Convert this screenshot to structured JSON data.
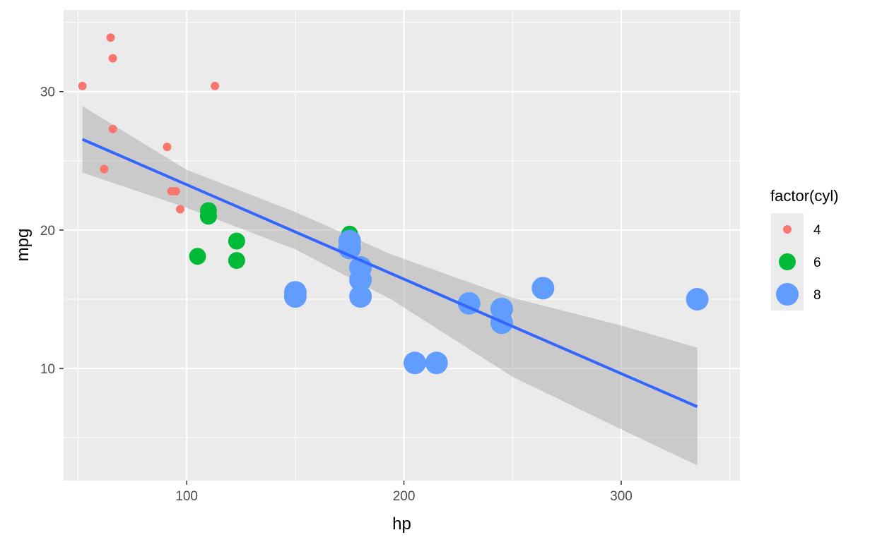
{
  "chart_data": {
    "type": "scatter",
    "title": "",
    "xlabel": "hp",
    "ylabel": "mpg",
    "xlim": [
      43.35,
      354.65
    ],
    "ylim": [
      1.9,
      35.9
    ],
    "x_ticks": [
      100,
      200,
      300
    ],
    "y_ticks": [
      10,
      20,
      30
    ],
    "grid": true,
    "legend": {
      "title": "factor(cyl)",
      "position": "right",
      "entries": [
        {
          "label": "4",
          "color": "#F8766D",
          "size": "small"
        },
        {
          "label": "6",
          "color": "#00BA38",
          "size": "medium"
        },
        {
          "label": "8",
          "color": "#619CFF",
          "size": "large"
        }
      ]
    },
    "series": [
      {
        "name": "4",
        "color": "#F8766D",
        "points": [
          [
            52,
            30.4
          ],
          [
            65,
            33.9
          ],
          [
            66,
            32.4
          ],
          [
            113,
            30.4
          ],
          [
            66,
            27.3
          ],
          [
            91,
            26.0
          ],
          [
            62,
            24.4
          ],
          [
            93,
            22.8
          ],
          [
            95,
            22.8
          ],
          [
            97,
            21.5
          ],
          [
            109,
            21.4
          ]
        ]
      },
      {
        "name": "6",
        "color": "#00BA38",
        "points": [
          [
            110,
            21.0
          ],
          [
            110,
            21.0
          ],
          [
            110,
            21.4
          ],
          [
            105,
            18.1
          ],
          [
            123,
            19.2
          ],
          [
            123,
            17.8
          ],
          [
            175,
            19.7
          ]
        ]
      },
      {
        "name": "8",
        "color": "#619CFF",
        "points": [
          [
            175,
            18.7
          ],
          [
            245,
            14.3
          ],
          [
            180,
            16.4
          ],
          [
            180,
            17.3
          ],
          [
            180,
            15.2
          ],
          [
            205,
            10.4
          ],
          [
            215,
            10.4
          ],
          [
            230,
            14.7
          ],
          [
            150,
            15.5
          ],
          [
            150,
            15.2
          ],
          [
            245,
            13.3
          ],
          [
            175,
            19.2
          ],
          [
            264,
            15.8
          ],
          [
            335,
            15.0
          ]
        ]
      }
    ],
    "fit": {
      "method": "lm",
      "color": "#3366FF",
      "line": [
        [
          52,
          26.55
        ],
        [
          335,
          7.24
        ]
      ],
      "band": {
        "color": "#999999",
        "lower": [
          [
            52,
            24.15
          ],
          [
            100,
            21.6
          ],
          [
            150,
            18.6
          ],
          [
            194,
            15.0
          ],
          [
            250,
            9.4
          ],
          [
            300,
            5.6
          ],
          [
            335,
            3.0
          ]
        ],
        "upper": [
          [
            52,
            28.95
          ],
          [
            100,
            24.35
          ],
          [
            150,
            21.3
          ],
          [
            194,
            18.25
          ],
          [
            250,
            15.1
          ],
          [
            300,
            13.1
          ],
          [
            335,
            11.5
          ]
        ]
      }
    }
  }
}
